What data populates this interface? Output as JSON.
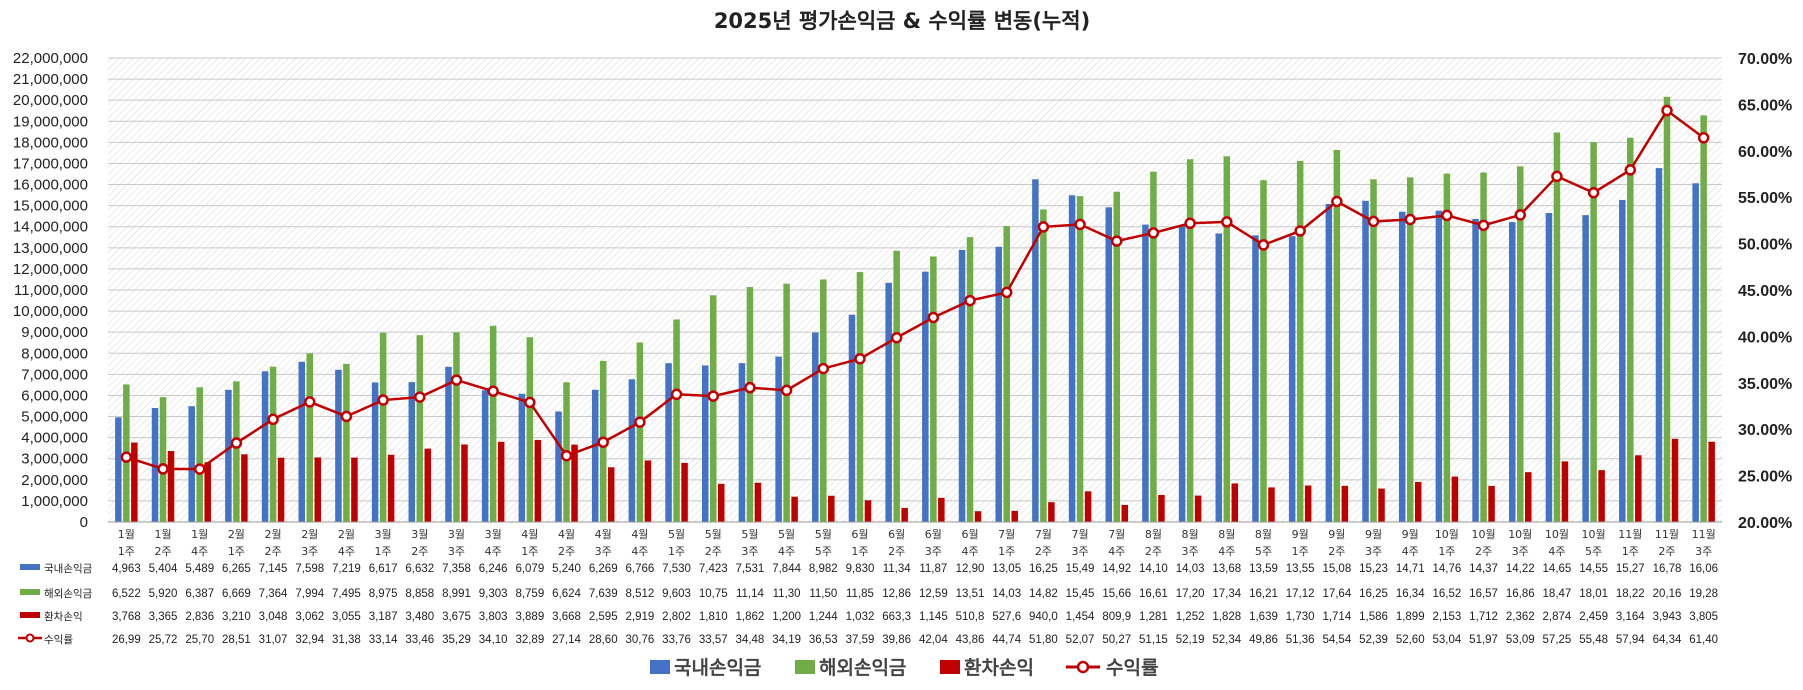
{
  "chart_data": {
    "type": "bar",
    "title": "2025년 평가손익금 & 수익률 변동(누적)",
    "categories": [
      [
        "1월",
        "1주"
      ],
      [
        "1월",
        "2주"
      ],
      [
        "1월",
        "4주"
      ],
      [
        "2월",
        "1주"
      ],
      [
        "2월",
        "2주"
      ],
      [
        "2월",
        "3주"
      ],
      [
        "2월",
        "4주"
      ],
      [
        "3월",
        "1주"
      ],
      [
        "3월",
        "2주"
      ],
      [
        "3월",
        "3주"
      ],
      [
        "3월",
        "4주"
      ],
      [
        "4월",
        "1주"
      ],
      [
        "4월",
        "2주"
      ],
      [
        "4월",
        "3주"
      ],
      [
        "4월",
        "4주"
      ],
      [
        "5월",
        "1주"
      ],
      [
        "5월",
        "2주"
      ],
      [
        "5월",
        "3주"
      ],
      [
        "5월",
        "4주"
      ],
      [
        "5월",
        "5주"
      ],
      [
        "6월",
        "1주"
      ],
      [
        "6월",
        "2주"
      ],
      [
        "6월",
        "3주"
      ],
      [
        "6월",
        "4주"
      ],
      [
        "7월",
        "1주"
      ],
      [
        "7월",
        "2주"
      ],
      [
        "7월",
        "3주"
      ],
      [
        "7월",
        "4주"
      ],
      [
        "8월",
        "2주"
      ],
      [
        "8월",
        "3주"
      ],
      [
        "8월",
        "4주"
      ],
      [
        "8월",
        "5주"
      ],
      [
        "9월",
        "1주"
      ],
      [
        "9월",
        "2주"
      ],
      [
        "9월",
        "3주"
      ],
      [
        "9월",
        "4주"
      ],
      [
        "10월",
        "1주"
      ],
      [
        "10월",
        "2주"
      ],
      [
        "10월",
        "3주"
      ],
      [
        "10월",
        "4주"
      ],
      [
        "10월",
        "5주"
      ],
      [
        "11월",
        "1주"
      ],
      [
        "11월",
        "2주"
      ],
      [
        "11월",
        "3주"
      ]
    ],
    "y_axis": {
      "min": 0,
      "max": 22000000,
      "step": 1000000,
      "tick_labels": [
        "0",
        "1,000,000",
        "2,000,000",
        "3,000,000",
        "4,000,000",
        "5,000,000",
        "6,000,000",
        "7,000,000",
        "8,000,000",
        "9,000,000",
        "10,000,000",
        "11,000,000",
        "12,000,000",
        "13,000,000",
        "14,000,000",
        "15,000,000",
        "16,000,000",
        "17,000,000",
        "18,000,000",
        "19,000,000",
        "20,000,000",
        "21,000,000",
        "22,000,000"
      ]
    },
    "y2_axis": {
      "min": 20,
      "max": 70,
      "step": 5,
      "tick_labels": [
        "20.00%",
        "25.00%",
        "30.00%",
        "35.00%",
        "40.00%",
        "45.00%",
        "50.00%",
        "55.00%",
        "60.00%",
        "65.00%",
        "70.00%"
      ]
    },
    "series": [
      {
        "name": "국내손익금",
        "type": "bar",
        "color": "#4472C4",
        "values": [
          4963000,
          5404000,
          5489000,
          6265000,
          7145000,
          7598000,
          7219000,
          6617000,
          6632000,
          7358000,
          6246000,
          6079000,
          5240000,
          6269000,
          6766000,
          7530000,
          7423000,
          7531000,
          7844000,
          8982000,
          9830000,
          11340000,
          11870000,
          12900000,
          13050000,
          16250000,
          15490000,
          14920000,
          14100000,
          14030000,
          13680000,
          13590000,
          13550000,
          15080000,
          15230000,
          14710000,
          14760000,
          14370000,
          14220000,
          14650000,
          14550000,
          15270000,
          16780000,
          16060000
        ]
      },
      {
        "name": "해외손익금",
        "type": "bar",
        "color": "#70AD47",
        "values": [
          6522000,
          5920000,
          6387000,
          6669000,
          7364000,
          7994000,
          7495000,
          8975000,
          8858000,
          8991000,
          9303000,
          8759000,
          6624000,
          7639000,
          8512000,
          9603000,
          10750000,
          11140000,
          11300000,
          11500000,
          11850000,
          12860000,
          12590000,
          13510000,
          14030000,
          14820000,
          15450000,
          15660000,
          16610000,
          17200000,
          17340000,
          16210000,
          17120000,
          17640000,
          16250000,
          16340000,
          16520000,
          16570000,
          16860000,
          18470000,
          18010000,
          18220000,
          20160000,
          19280000
        ]
      },
      {
        "name": "환차손익",
        "type": "bar",
        "color": "#C00000",
        "values": [
          3768000,
          3365000,
          2836000,
          3210000,
          3048000,
          3062000,
          3055000,
          3187000,
          3480000,
          3675000,
          3803000,
          3889000,
          3668000,
          2595000,
          2919000,
          2802000,
          1810000,
          1862000,
          1200000,
          1244000,
          1032000,
          663300,
          1145000,
          510800,
          527600,
          940000,
          1454000,
          809900,
          1281000,
          1252000,
          1828000,
          1639000,
          1730000,
          1714000,
          1586000,
          1899000,
          2153000,
          1712000,
          2362000,
          2874000,
          2459000,
          3164000,
          3943000,
          3805000
        ]
      },
      {
        "name": "수익률",
        "type": "line",
        "axis": "y2",
        "color": "#C00000",
        "values": [
          26.99,
          25.72,
          25.7,
          28.51,
          31.07,
          32.94,
          31.38,
          33.14,
          33.46,
          35.29,
          34.1,
          32.89,
          27.14,
          28.6,
          30.76,
          33.76,
          33.57,
          34.48,
          34.19,
          36.53,
          37.59,
          39.86,
          42.04,
          43.86,
          44.74,
          51.8,
          52.07,
          50.27,
          51.15,
          52.19,
          52.34,
          49.86,
          51.36,
          54.54,
          52.39,
          52.6,
          53.04,
          51.97,
          53.09,
          57.25,
          55.48,
          57.94,
          64.34,
          61.4
        ]
      }
    ],
    "table": {
      "rows": [
        {
          "label": "국내손익금",
          "cells": [
            "4,963",
            "5,404",
            "5,489",
            "6,265",
            "7,145",
            "7,598",
            "7,219",
            "6,617",
            "6,632",
            "7,358",
            "6,246",
            "6,079",
            "5,240",
            "6,269",
            "6,766",
            "7,530",
            "7,423",
            "7,531",
            "7,844",
            "8,982",
            "9,830",
            "11,34",
            "11,87",
            "12,90",
            "13,05",
            "16,25",
            "15,49",
            "14,92",
            "14,10",
            "14,03",
            "13,68",
            "13,59",
            "13,55",
            "15,08",
            "15,23",
            "14,71",
            "14,76",
            "14,37",
            "14,22",
            "14,65",
            "14,55",
            "15,27",
            "16,78",
            "16,06"
          ]
        },
        {
          "label": "해외손익금",
          "cells": [
            "6,522",
            "5,920",
            "6,387",
            "6,669",
            "7,364",
            "7,994",
            "7,495",
            "8,975",
            "8,858",
            "8,991",
            "9,303",
            "8,759",
            "6,624",
            "7,639",
            "8,512",
            "9,603",
            "10,75",
            "11,14",
            "11,30",
            "11,50",
            "11,85",
            "12,86",
            "12,59",
            "13,51",
            "14,03",
            "14,82",
            "15,45",
            "15,66",
            "16,61",
            "17,20",
            "17,34",
            "16,21",
            "17,12",
            "17,64",
            "16,25",
            "16,34",
            "16,52",
            "16,57",
            "16,86",
            "18,47",
            "18,01",
            "18,22",
            "20,16",
            "19,28"
          ]
        },
        {
          "label": "환차손익",
          "cells": [
            "3,768",
            "3,365",
            "2,836",
            "3,210",
            "3,048",
            "3,062",
            "3,055",
            "3,187",
            "3,480",
            "3,675",
            "3,803",
            "3,889",
            "3,668",
            "2,595",
            "2,919",
            "2,802",
            "1,810",
            "1,862",
            "1,200",
            "1,244",
            "1,032",
            "663,3",
            "1,145",
            "510,8",
            "527,6",
            "940,0",
            "1,454",
            "809,9",
            "1,281",
            "1,252",
            "1,828",
            "1,639",
            "1,730",
            "1,714",
            "1,586",
            "1,899",
            "2,153",
            "1,712",
            "2,362",
            "2,874",
            "2,459",
            "3,164",
            "3,943",
            "3,805"
          ]
        },
        {
          "label": "수익률",
          "cells": [
            "26,99",
            "25,72",
            "25,70",
            "28,51",
            "31,07",
            "32,94",
            "31,38",
            "33,14",
            "33,46",
            "35,29",
            "34,10",
            "32,89",
            "27,14",
            "28,60",
            "30,76",
            "33,76",
            "33,57",
            "34,48",
            "34,19",
            "36,53",
            "37,59",
            "39,86",
            "42,04",
            "43,86",
            "44,74",
            "51,80",
            "52,07",
            "50,27",
            "51,15",
            "52,19",
            "52,34",
            "49,86",
            "51,36",
            "54,54",
            "52,39",
            "52,60",
            "53,04",
            "51,97",
            "53,09",
            "57,25",
            "55,48",
            "57,94",
            "64,34",
            "61,40"
          ]
        }
      ]
    },
    "legend": {
      "position": "bottom",
      "items": [
        "국내손익금",
        "해외손익금",
        "환차손익",
        "수익률"
      ]
    }
  }
}
